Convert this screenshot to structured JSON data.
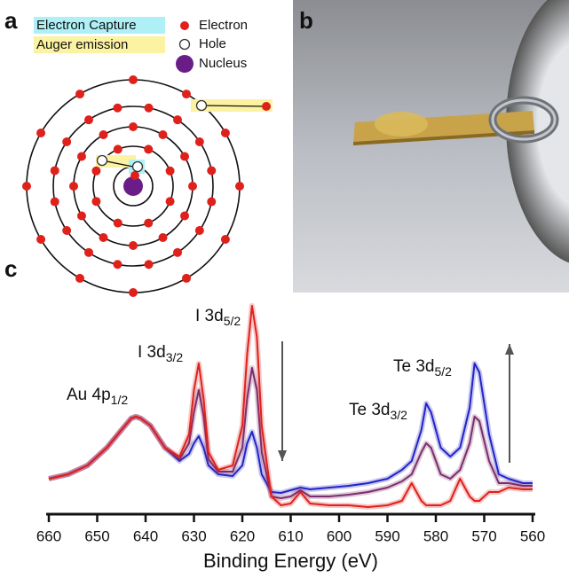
{
  "panels": {
    "a": "a",
    "b": "b",
    "c": "c"
  },
  "diagram": {
    "legend": {
      "capture": "Electron Capture",
      "auger": "Auger emission",
      "electron": "Electron",
      "hole": "Hole",
      "nucleus": "Nucleus"
    }
  },
  "chart_data": {
    "type": "line",
    "xlabel": "Binding Energy (eV)",
    "x": [
      660,
      656,
      652,
      648,
      645,
      643,
      642,
      641,
      639,
      636,
      633,
      631,
      630,
      629,
      628,
      627,
      625,
      622,
      620,
      619,
      618,
      617,
      616,
      614,
      612,
      610,
      608,
      606,
      602,
      598,
      594,
      590,
      587,
      585,
      583,
      582,
      581,
      579,
      577,
      575,
      573,
      572,
      571,
      569,
      567,
      565,
      562,
      560
    ],
    "xlim": [
      660,
      560
    ],
    "xticks": [
      660,
      650,
      640,
      630,
      620,
      610,
      600,
      590,
      580,
      570,
      560
    ],
    "ylim": [
      0,
      240
    ],
    "series": [
      {
        "color": "#2323c8",
        "values": [
          40,
          45,
          55,
          75,
          95,
          108,
          110,
          108,
          100,
          75,
          60,
          68,
          80,
          88,
          75,
          55,
          45,
          43,
          55,
          80,
          93,
          75,
          45,
          25,
          24,
          27,
          30,
          28,
          30,
          32,
          35,
          40,
          50,
          60,
          95,
          125,
          115,
          75,
          65,
          75,
          120,
          170,
          160,
          90,
          45,
          40,
          35,
          35
        ]
      },
      {
        "color": "#7b2d6b",
        "values": [
          40,
          45,
          55,
          75,
          95,
          108,
          110,
          108,
          100,
          75,
          62,
          80,
          115,
          140,
          110,
          62,
          48,
          48,
          75,
          130,
          165,
          140,
          70,
          20,
          18,
          20,
          27,
          20,
          20,
          22,
          25,
          30,
          37,
          45,
          70,
          80,
          75,
          45,
          40,
          50,
          80,
          110,
          105,
          60,
          35,
          35,
          32,
          32
        ]
      },
      {
        "color": "#e0201b",
        "values": [
          40,
          45,
          55,
          75,
          95,
          108,
          110,
          108,
          100,
          75,
          65,
          90,
          140,
          170,
          130,
          70,
          50,
          55,
          100,
          180,
          235,
          200,
          100,
          20,
          10,
          12,
          25,
          12,
          10,
          10,
          8,
          10,
          15,
          35,
          15,
          10,
          10,
          10,
          15,
          40,
          20,
          15,
          15,
          25,
          25,
          30,
          28,
          28
        ]
      }
    ],
    "annotations": [
      {
        "text": "Au 4p",
        "sub": "1/2"
      },
      {
        "text": "I 3d",
        "sub": "3/2"
      },
      {
        "text": "I 3d",
        "sub": "5/2"
      },
      {
        "text": "Te 3d",
        "sub": "3/2"
      },
      {
        "text": "Te 3d",
        "sub": "5/2"
      }
    ]
  }
}
